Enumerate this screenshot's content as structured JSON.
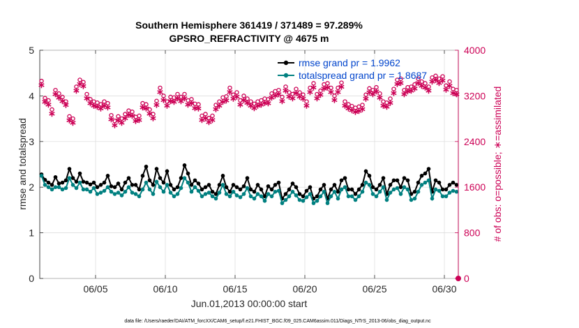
{
  "chart_data": {
    "type": "line",
    "title_line1": "Southern Hemisphere 361419 / 371489 = 97.289%",
    "title_line2": "GPSRO_REFRACTIVITY @ 4675 m",
    "xlabel": "Jun.01,2013 00:00:00 start",
    "ylabel_left": "rmse and totalspread",
    "ylabel_right": "# of obs: o=possible; ∗=assimilated",
    "footer": "data file: /Users/raeder/DAI/ATM_forcXX/CAM6_setup/f.e21.FHIST_BGC.f09_025.CAM6assim.011/Diags_NTrS_2013-06/obs_diag_output.nc",
    "xlim": [
      1,
      31
    ],
    "ylim_left": [
      0,
      5
    ],
    "ylim_right": [
      0,
      4000
    ],
    "x_ticks": [
      5,
      10,
      15,
      20,
      25,
      30
    ],
    "x_tick_labels": [
      "06/05",
      "06/10",
      "06/15",
      "06/20",
      "06/25",
      "06/30"
    ],
    "y_left_ticks": [
      0,
      1,
      2,
      3,
      4,
      5
    ],
    "y_left_tick_labels": [
      "0",
      "1",
      "2",
      "3",
      "4",
      "5"
    ],
    "y_right_ticks": [
      0,
      800,
      1600,
      2400,
      3200,
      4000
    ],
    "y_right_tick_labels": [
      "0",
      "800",
      "1600",
      "2400",
      "3200",
      "4000"
    ],
    "x_start": 1.125,
    "x_step": 0.25,
    "colors": {
      "rmse": "#000000",
      "spread": "#008080",
      "obs": "#cc0055",
      "title": "#000000",
      "legend_text": "#0044cc"
    },
    "legend": [
      {
        "label": "rmse grand pr = 1.9962"
      },
      {
        "label": "totalspread grand pr = 1.8687"
      }
    ],
    "series": [
      {
        "name": "rmse",
        "values": [
          2.28,
          2.16,
          2.1,
          2.05,
          2.22,
          2.08,
          2.1,
          2.15,
          2.4,
          2.2,
          2.12,
          2.3,
          2.12,
          2.1,
          2.06,
          2.1,
          2.0,
          2.05,
          2.1,
          2.25,
          2.02,
          2.0,
          2.08,
          1.95,
          2.1,
          2.2,
          2.05,
          2.05,
          1.95,
          2.25,
          2.45,
          2.15,
          2.05,
          2.4,
          2.2,
          2.1,
          2.35,
          2.05,
          1.95,
          2.0,
          2.2,
          2.48,
          2.3,
          2.05,
          2.15,
          2.08,
          1.95,
          2.0,
          2.05,
          1.9,
          1.85,
          2.05,
          2.25,
          2.0,
          1.9,
          2.05,
          2.0,
          1.95,
          2.02,
          2.2,
          1.95,
          1.9,
          2.05,
          1.95,
          1.8,
          2.02,
          1.95,
          2.05,
          2.1,
          1.75,
          1.85,
          1.95,
          2.08,
          2.0,
          1.85,
          1.8,
          1.92,
          2.0,
          1.75,
          1.8,
          1.95,
          2.05,
          1.75,
          1.95,
          2.05,
          1.9,
          2.15,
          2.2,
          1.95,
          1.95,
          1.85,
          1.95,
          2.05,
          2.35,
          2.25,
          2.0,
          1.95,
          2.05,
          2.2,
          1.85,
          2.05,
          2.15,
          2.15,
          2.0,
          2.2,
          2.15,
          1.85,
          1.9,
          2.1,
          2.25,
          2.3,
          2.4,
          1.9,
          2.15,
          2.1,
          1.95,
          1.95,
          2.05,
          2.1,
          2.05,
          2.25,
          2.1,
          2.0,
          1.9,
          2.15,
          2.12,
          2.0,
          1.95,
          1.9,
          2.05,
          2.1,
          1.95,
          2.2,
          2.15,
          2.0,
          1.95,
          2.05,
          2.35,
          2.2,
          2.0,
          2.05,
          1.92,
          1.95,
          2.05,
          2.1,
          2.0,
          1.95,
          2.05,
          2.12,
          2.0,
          2.05,
          1.9,
          2.0,
          1.95,
          1.8,
          1.75,
          2.02,
          1.9,
          2.0,
          2.05,
          2.1,
          2.12,
          1.95,
          2.0,
          2.05,
          2.15,
          2.2,
          1.9,
          1.85,
          2.2,
          1.98,
          1.9,
          2.1,
          1.95,
          2.05,
          2.0,
          1.82,
          1.92,
          2.05,
          1.95,
          1.9,
          2.08,
          2.02,
          2.0,
          1.95,
          2.05,
          2.12,
          2.0,
          1.9,
          2.05,
          2.1,
          1.95,
          1.95,
          2.0,
          1.8,
          1.7,
          1.9,
          2.1
        ]
      },
      {
        "name": "totalspread",
        "values": [
          2.25,
          2.05,
          2.0,
          1.95,
          2.0,
          2.0,
          1.95,
          1.98,
          2.2,
          2.05,
          1.98,
          2.1,
          1.95,
          1.95,
          1.9,
          1.98,
          1.85,
          1.88,
          1.92,
          2.0,
          1.9,
          1.85,
          1.88,
          1.82,
          1.9,
          2.0,
          1.88,
          1.85,
          1.8,
          1.95,
          2.1,
          1.95,
          1.85,
          2.12,
          2.0,
          1.9,
          2.05,
          1.88,
          1.8,
          1.85,
          1.98,
          2.2,
          2.1,
          1.9,
          2.0,
          1.92,
          1.8,
          1.85,
          1.88,
          1.8,
          1.75,
          1.88,
          2.05,
          1.85,
          1.8,
          1.9,
          1.82,
          1.78,
          1.85,
          1.98,
          1.8,
          1.75,
          1.85,
          1.8,
          1.7,
          1.85,
          1.8,
          1.9,
          1.92,
          1.65,
          1.72,
          1.8,
          1.9,
          1.82,
          1.72,
          1.7,
          1.78,
          1.85,
          1.65,
          1.7,
          1.8,
          1.9,
          1.65,
          1.8,
          1.9,
          1.75,
          1.95,
          2.0,
          1.8,
          1.8,
          1.72,
          1.8,
          1.9,
          2.1,
          2.05,
          1.85,
          1.8,
          1.9,
          2.0,
          1.72,
          1.88,
          1.95,
          1.98,
          1.85,
          2.0,
          1.95,
          1.72,
          1.75,
          1.9,
          2.05,
          2.1,
          2.15,
          1.75,
          1.95,
          1.92,
          1.8,
          1.8,
          1.88,
          1.92,
          1.9,
          2.05,
          1.95,
          1.85,
          1.75,
          1.95,
          1.95,
          1.85,
          1.8,
          1.75,
          1.88,
          1.92,
          1.8,
          2.0,
          1.98,
          1.85,
          1.8,
          1.88,
          2.1,
          2.0,
          1.85,
          1.9,
          1.78,
          1.8,
          1.9,
          1.95,
          1.85,
          1.8,
          1.88,
          1.95,
          1.85,
          1.9,
          1.78,
          1.85,
          1.8,
          1.7,
          1.65,
          1.85,
          1.78,
          1.85,
          1.9,
          1.95,
          1.95,
          1.8,
          1.85,
          1.9,
          1.98,
          2.0,
          1.78,
          1.72,
          2.0,
          1.85,
          1.78,
          1.92,
          1.8,
          1.88,
          1.85,
          1.72,
          1.78,
          1.88,
          1.8,
          1.78,
          1.9,
          1.88,
          1.85,
          1.8,
          1.88,
          1.95,
          1.85,
          1.78,
          1.88,
          1.92,
          1.8,
          1.8,
          1.85,
          1.7,
          1.62,
          1.78,
          1.95
        ]
      },
      {
        "name": "possible",
        "values": [
          3460,
          3160,
          3120,
          2960,
          3300,
          3240,
          3180,
          3100,
          2840,
          2800,
          3360,
          3480,
          3440,
          3230,
          3140,
          3100,
          3080,
          3050,
          3100,
          3070,
          2860,
          2760,
          2840,
          2800,
          2880,
          2940,
          2920,
          2830,
          2850,
          3070,
          3050,
          2960,
          2880,
          3110,
          3340,
          3200,
          3100,
          3180,
          3170,
          3230,
          3180,
          3230,
          3120,
          3140,
          3060,
          3050,
          2850,
          2880,
          2810,
          2850,
          3040,
          3100,
          3170,
          3190,
          3340,
          3220,
          3260,
          3120,
          3200,
          3150,
          3100,
          3060,
          3100,
          3120,
          3150,
          3140,
          3240,
          3280,
          3300,
          3180,
          3360,
          3260,
          3230,
          3320,
          3260,
          3220,
          3100,
          3340,
          3420,
          3230,
          3290,
          3400,
          3420,
          3340,
          3200,
          3340,
          3430,
          3100,
          3050,
          3020,
          2990,
          3010,
          3040,
          3220,
          3330,
          3300,
          3350,
          3240,
          3100,
          3080,
          3150,
          3320,
          3480,
          3500,
          3300,
          3350,
          3360,
          3400,
          3500,
          3450,
          3420,
          3360,
          3520,
          3550,
          3500,
          3540,
          3380,
          3450,
          3320,
          3300,
          3380,
          3420,
          3330,
          3100,
          2900,
          3140,
          2860,
          3200,
          3430,
          3140,
          3100,
          3240,
          3260,
          3280,
          3400,
          3440,
          3400,
          3200,
          3180,
          2950,
          3000,
          3050,
          3020,
          2900,
          2820,
          3140,
          3260,
          3360,
          3450,
          3380,
          3330,
          3300,
          3350,
          3450,
          3480,
          3540,
          3460,
          3380,
          3200,
          3260,
          3220,
          3000,
          2880,
          3050,
          3200,
          3310,
          3260,
          3220,
          3300,
          3160,
          3200,
          3220,
          3210,
          3350,
          3400,
          3450,
          3380,
          3450,
          3460,
          3370,
          3320,
          3400,
          3500,
          3520,
          3380,
          3220,
          3330,
          3420,
          3450,
          3460,
          3520,
          3500,
          3440,
          3460,
          3340,
          3350,
          3350,
          3300,
          3200,
          3420,
          3450,
          3520,
          3500,
          3480,
          3400
        ]
      },
      {
        "name": "assimilated",
        "values": [
          3400,
          3110,
          3060,
          2900,
          3240,
          3180,
          3120,
          3050,
          2780,
          2740,
          3300,
          3420,
          3380,
          3170,
          3080,
          3040,
          3020,
          2990,
          3040,
          3010,
          2800,
          2700,
          2780,
          2740,
          2820,
          2880,
          2860,
          2770,
          2790,
          3010,
          2990,
          2900,
          2820,
          3050,
          3280,
          3140,
          3040,
          3120,
          3110,
          3170,
          3120,
          3170,
          3060,
          3080,
          3000,
          2990,
          2790,
          2820,
          2750,
          2790,
          2980,
          3040,
          3110,
          3130,
          3280,
          3160,
          3200,
          3060,
          3140,
          3090,
          3040,
          3000,
          3040,
          3060,
          3090,
          3080,
          3180,
          3220,
          3240,
          3120,
          3300,
          3200,
          3170,
          3260,
          3200,
          3160,
          3040,
          3280,
          3360,
          3170,
          3230,
          3340,
          3360,
          3280,
          3140,
          3280,
          3370,
          3040,
          2990,
          2960,
          2930,
          2950,
          2980,
          3160,
          3270,
          3240,
          3290,
          3180,
          3040,
          3020,
          3090,
          3260,
          3420,
          3440,
          3240,
          3290,
          3300,
          3340,
          3440,
          3390,
          3360,
          3300,
          3460,
          3490,
          3440,
          3480,
          3320,
          3390,
          3260,
          3240,
          3320,
          3360,
          3270,
          3040,
          2840,
          3080,
          2800,
          3140,
          3370,
          3080,
          3040,
          3180,
          3200,
          3220,
          3340,
          3380,
          3340,
          3140,
          3120,
          2890,
          2940,
          2990,
          2960,
          2840,
          2760,
          3080,
          3200,
          3300,
          3390,
          3320,
          3270,
          3240,
          3290,
          3390,
          3420,
          3480,
          3400,
          3320,
          3140,
          3200,
          3160,
          2940,
          2820,
          2990,
          3140,
          3250,
          3200,
          3160,
          3240,
          3100,
          3140,
          3160,
          3150,
          3290,
          3340,
          3390,
          3320,
          3390,
          3400,
          3310,
          3260,
          3340,
          3440,
          3460,
          3320,
          3160,
          3270,
          3360,
          3390,
          3400,
          3460,
          3440,
          3380,
          3400,
          3280,
          3290,
          3290,
          3240,
          3140,
          3360,
          3390,
          3460,
          3440,
          3420,
          3340
        ]
      }
    ],
    "final_point": {
      "x": 31,
      "value_right": 0
    }
  }
}
